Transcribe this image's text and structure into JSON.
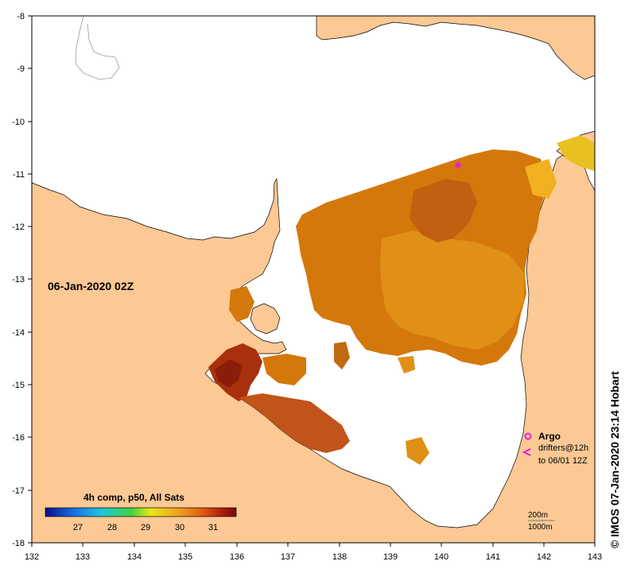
{
  "map": {
    "date_label": "06-Jan-2020 02Z",
    "copyright": "© IMOS 07-Jan-2020 23:14 Hobart",
    "longitude_ticks": [
      "132",
      "133",
      "134",
      "135",
      "136",
      "137",
      "138",
      "139",
      "140",
      "141",
      "142",
      "143"
    ],
    "latitude_ticks": [
      "-8",
      "-9",
      "-10",
      "-11",
      "-12",
      "-13",
      "-14",
      "-15",
      "-16",
      "-17",
      "-18"
    ],
    "colorbar": {
      "title": "4h comp, p50, All Sats",
      "ticks": [
        "27",
        "28",
        "29",
        "30",
        "31"
      ],
      "range": [
        26,
        32
      ],
      "colors": [
        "#0b0b8a",
        "#1a6fe8",
        "#1ec8d8",
        "#3ed33e",
        "#e8e81a",
        "#f0a020",
        "#e06010",
        "#b0200a",
        "#7a0a0a"
      ]
    },
    "legend": {
      "argo_label": "Argo",
      "drifters_label": "drifters@12h",
      "drifters_sub": "to 06/01 12Z",
      "argo_color": "#e020e0",
      "scale_200m": "200m",
      "scale_1000m": "1000m"
    },
    "colors": {
      "land": "#fcc894",
      "sea": "#ffffff",
      "sst_warm": "#d4780c"
    }
  }
}
